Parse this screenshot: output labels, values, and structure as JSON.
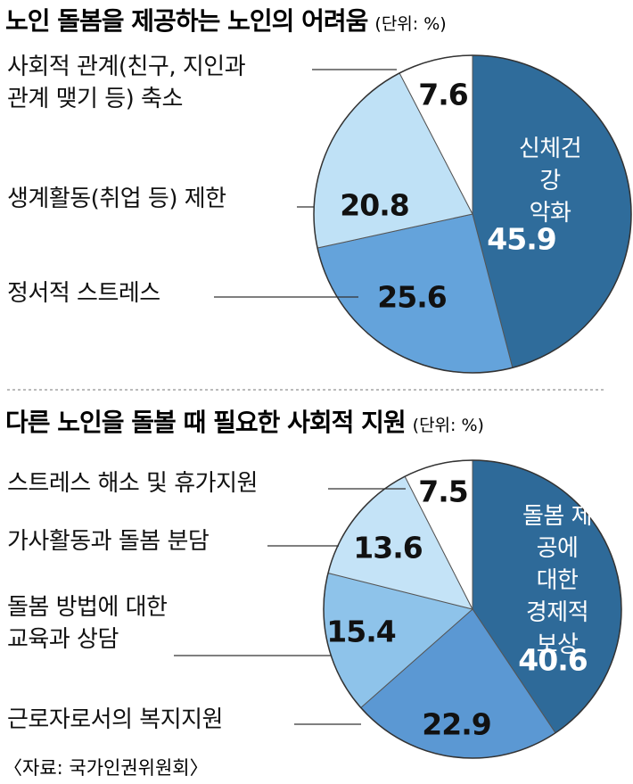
{
  "chart_data": [
    {
      "type": "pie",
      "title": "노인 돌봄을 제공하는 노인의 어려움",
      "unit": "(단위: %)",
      "categories": [
        "신체건강\n악화",
        "정서적 스트레스",
        "생계활동(취업 등) 제한",
        "사회적 관계(친구, 지인과\n관계 맺기 등) 축소"
      ],
      "values": [
        45.9,
        25.6,
        20.8,
        7.6
      ],
      "colors": [
        "#2f6c9b",
        "#64a3db",
        "#bfe1f6",
        "#ffffff"
      ]
    },
    {
      "type": "pie",
      "title": "다른 노인을 돌볼 때 필요한 사회적 지원",
      "unit": "(단위: %)",
      "categories": [
        "돌봄 제공에\n대한\n경제적 보상",
        "근로자로서의 복지지원",
        "돌봄 방법에 대한\n교육과 상담",
        "가사활동과 돌봄 분담",
        "스트레스 해소 및 휴가지원"
      ],
      "values": [
        40.6,
        22.9,
        15.4,
        13.6,
        7.5
      ],
      "colors": [
        "#2e6a99",
        "#5b98d3",
        "#8ec3ea",
        "#c4e3f7",
        "#ffffff"
      ]
    }
  ],
  "source": "〈자료: 국가인권위원회〉"
}
